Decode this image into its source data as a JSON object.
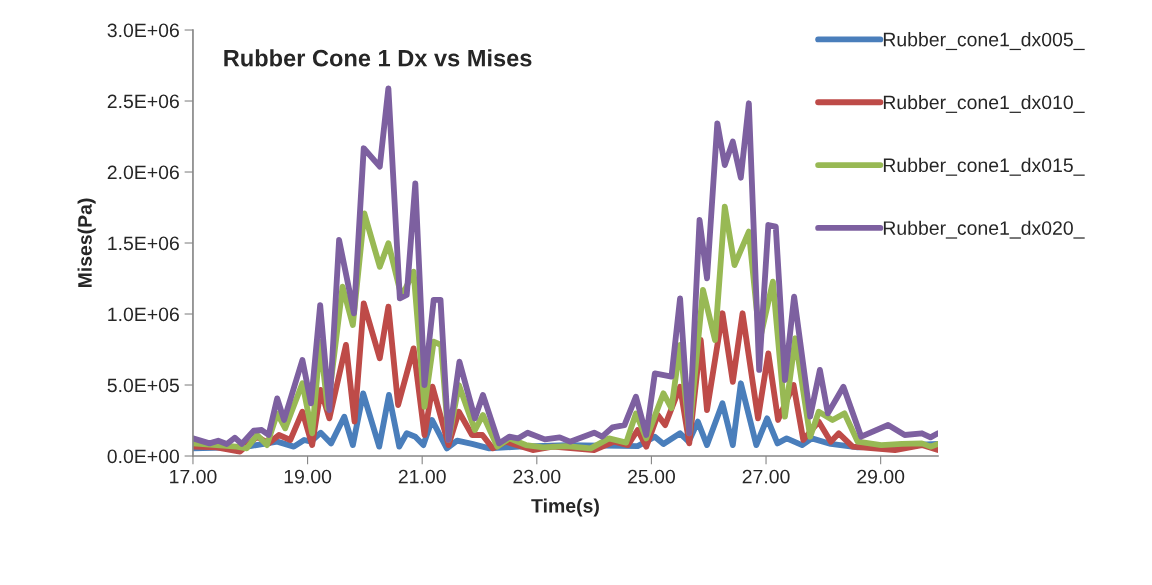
{
  "chart_data": {
    "type": "line",
    "title": "Rubber Cone 1 Dx vs Mises",
    "xlabel": "Time(s)",
    "ylabel": "Mises(Pa)",
    "xlim": [
      17,
      30
    ],
    "xticks": [
      {
        "value": 17,
        "label": "17.00"
      },
      {
        "value": 19,
        "label": "19.00"
      },
      {
        "value": 21,
        "label": "21.00"
      },
      {
        "value": 23,
        "label": "23.00"
      },
      {
        "value": 25,
        "label": "25.00"
      },
      {
        "value": 27,
        "label": "27.00"
      },
      {
        "value": 29,
        "label": "29.00"
      }
    ],
    "ylim": [
      0,
      3000000
    ],
    "yticks": [
      {
        "value": 0,
        "label": "0.0E+00"
      },
      {
        "value": 500000,
        "label": "5.0E+05"
      },
      {
        "value": 1000000,
        "label": "1.0E+06"
      },
      {
        "value": 1500000,
        "label": "1.5E+06"
      },
      {
        "value": 2000000,
        "label": "2.0E+06"
      },
      {
        "value": 2500000,
        "label": "2.5E+06"
      },
      {
        "value": 3000000,
        "label": "3.0E+06"
      }
    ],
    "grid": false,
    "legend": "top right",
    "marker": "none",
    "line_style": "solid",
    "series": [
      {
        "name": "Rubber_cone1_dx005_",
        "color": "#4a7ebb",
        "x": [
          17.0,
          17.7,
          18.0,
          18.47,
          18.76,
          18.94,
          19.06,
          19.23,
          19.41,
          19.64,
          19.79,
          19.97,
          20.25,
          20.42,
          20.6,
          20.73,
          20.88,
          21.02,
          21.17,
          21.43,
          21.61,
          21.87,
          22.17,
          22.7,
          23.52,
          24.76,
          25.06,
          25.21,
          25.5,
          25.65,
          25.81,
          25.97,
          26.24,
          26.42,
          26.56,
          26.83,
          27.02,
          27.2,
          27.36,
          27.63,
          27.8,
          28.13,
          28.6,
          30.0
        ],
        "values": [
          54000,
          61000,
          70000,
          101000,
          66000,
          113000,
          101000,
          164000,
          89000,
          277000,
          77000,
          441000,
          66000,
          430000,
          66000,
          160000,
          136000,
          77000,
          254000,
          54000,
          108000,
          85000,
          54000,
          66000,
          77000,
          70000,
          136000,
          85000,
          160000,
          101000,
          242000,
          77000,
          371000,
          77000,
          512000,
          77000,
          265000,
          89000,
          124000,
          77000,
          124000,
          85000,
          61000,
          85000
        ]
      },
      {
        "name": "Rubber_cone1_dx010_",
        "color": "#be4b48",
        "x": [
          17.0,
          17.41,
          17.82,
          18.12,
          18.32,
          18.5,
          18.7,
          18.91,
          19.08,
          19.23,
          19.38,
          19.67,
          19.82,
          19.98,
          20.26,
          20.41,
          20.58,
          20.85,
          21.04,
          21.18,
          21.46,
          21.64,
          21.87,
          22.05,
          22.23,
          22.46,
          22.93,
          23.28,
          24.0,
          24.35,
          24.59,
          24.76,
          24.91,
          25.11,
          25.24,
          25.5,
          25.66,
          25.86,
          25.97,
          26.24,
          26.42,
          26.59,
          26.86,
          27.04,
          27.21,
          27.48,
          27.65,
          27.92,
          28.13,
          28.27,
          28.51,
          29.25,
          29.72,
          30.0
        ],
        "values": [
          66000,
          61000,
          31000,
          136000,
          89000,
          148000,
          113000,
          312000,
          77000,
          465000,
          265000,
          782000,
          242000,
          1075000,
          688000,
          1052000,
          359000,
          758000,
          148000,
          488000,
          77000,
          312000,
          148000,
          148000,
          54000,
          101000,
          42000,
          66000,
          42000,
          101000,
          77000,
          183000,
          66000,
          289000,
          218000,
          488000,
          89000,
          817000,
          324000,
          1005000,
          523000,
          1005000,
          265000,
          723000,
          254000,
          500000,
          113000,
          242000,
          101000,
          160000,
          66000,
          42000,
          77000,
          42000
        ]
      },
      {
        "name": "Rubber_cone1_dx015_",
        "color": "#98b954",
        "x": [
          17.0,
          17.41,
          17.76,
          17.94,
          18.12,
          18.29,
          18.47,
          18.61,
          18.91,
          19.08,
          19.22,
          19.35,
          19.61,
          19.79,
          19.99,
          20.26,
          20.41,
          20.64,
          20.85,
          21.04,
          21.2,
          21.33,
          21.46,
          21.64,
          21.92,
          22.06,
          22.31,
          22.52,
          22.81,
          23.11,
          23.52,
          23.94,
          24.26,
          24.56,
          24.73,
          24.91,
          25.21,
          25.35,
          25.5,
          25.66,
          25.9,
          26.11,
          26.28,
          26.45,
          26.7,
          26.89,
          27.12,
          27.33,
          27.51,
          27.77,
          27.92,
          28.16,
          28.37,
          28.6,
          29.01,
          29.37,
          29.72,
          29.87,
          30.0
        ],
        "values": [
          89000,
          77000,
          66000,
          54000,
          148000,
          77000,
          300000,
          195000,
          512000,
          160000,
          805000,
          336000,
          1192000,
          923000,
          1709000,
          1333000,
          1498000,
          1122000,
          1298000,
          347000,
          805000,
          782000,
          113000,
          500000,
          183000,
          289000,
          66000,
          124000,
          77000,
          61000,
          70000,
          54000,
          124000,
          94000,
          300000,
          124000,
          441000,
          336000,
          782000,
          160000,
          1169000,
          817000,
          1756000,
          1345000,
          1580000,
          817000,
          1228000,
          277000,
          829000,
          136000,
          312000,
          254000,
          300000,
          101000,
          77000,
          85000,
          89000,
          66000,
          85000
        ]
      },
      {
        "name": "Rubber_cone1_dx020_",
        "color": "#7d60a0",
        "x": [
          17.0,
          17.29,
          17.44,
          17.59,
          17.73,
          17.85,
          18.06,
          18.2,
          18.32,
          18.47,
          18.59,
          18.91,
          19.06,
          19.22,
          19.38,
          19.55,
          19.81,
          19.98,
          20.26,
          20.41,
          20.61,
          20.73,
          20.88,
          21.04,
          21.2,
          21.32,
          21.46,
          21.65,
          21.92,
          22.06,
          22.34,
          22.52,
          22.67,
          22.84,
          23.14,
          23.4,
          23.58,
          24.0,
          24.14,
          24.32,
          24.53,
          24.73,
          24.91,
          25.06,
          25.35,
          25.5,
          25.66,
          25.84,
          25.97,
          26.15,
          26.28,
          26.42,
          26.56,
          26.7,
          26.88,
          27.04,
          27.17,
          27.33,
          27.49,
          27.77,
          27.94,
          28.08,
          28.35,
          28.66,
          29.13,
          29.42,
          29.72,
          29.87,
          30.0
        ],
        "values": [
          124000,
          89000,
          108000,
          85000,
          129000,
          85000,
          178000,
          183000,
          148000,
          406000,
          254000,
          676000,
          371000,
          1063000,
          324000,
          1521000,
          1005000,
          2167000,
          2038000,
          2589000,
          1110000,
          1134000,
          1920000,
          500000,
          1099000,
          1099000,
          113000,
          664000,
          265000,
          430000,
          89000,
          136000,
          124000,
          164000,
          117000,
          131000,
          101000,
          164000,
          136000,
          202000,
          218000,
          418000,
          148000,
          582000,
          559000,
          1110000,
          160000,
          1662000,
          1251000,
          2343000,
          2049000,
          2214000,
          1960000,
          2484000,
          606000,
          1627000,
          1615000,
          535000,
          1122000,
          277000,
          606000,
          300000,
          488000,
          136000,
          218000,
          148000,
          160000,
          131000,
          160000
        ]
      }
    ]
  }
}
